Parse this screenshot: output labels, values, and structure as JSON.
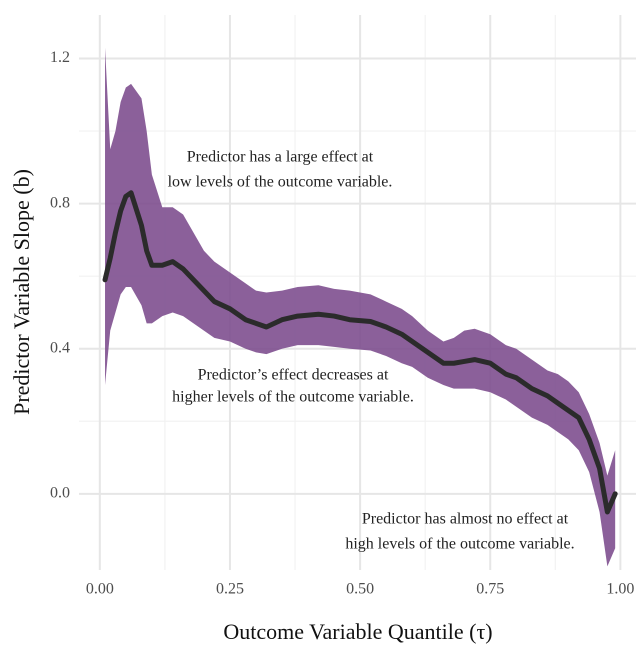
{
  "chart_data": {
    "type": "line",
    "xlabel": "Outcome Variable Quantile (τ)",
    "ylabel": "Predictor Variable Slope (b)",
    "x": [
      0.01,
      0.02,
      0.03,
      0.04,
      0.05,
      0.06,
      0.08,
      0.09,
      0.1,
      0.12,
      0.14,
      0.16,
      0.18,
      0.2,
      0.22,
      0.25,
      0.28,
      0.3,
      0.32,
      0.35,
      0.38,
      0.42,
      0.45,
      0.48,
      0.52,
      0.55,
      0.58,
      0.6,
      0.63,
      0.66,
      0.68,
      0.7,
      0.72,
      0.75,
      0.78,
      0.8,
      0.83,
      0.86,
      0.88,
      0.9,
      0.92,
      0.94,
      0.96,
      0.975,
      0.99
    ],
    "series": [
      {
        "color": "#2b2b2b",
        "band_color": "#7b4a8c",
        "values": [
          0.59,
          0.65,
          0.72,
          0.78,
          0.82,
          0.83,
          0.74,
          0.67,
          0.63,
          0.63,
          0.64,
          0.62,
          0.59,
          0.56,
          0.53,
          0.51,
          0.48,
          0.47,
          0.46,
          0.48,
          0.49,
          0.495,
          0.49,
          0.48,
          0.475,
          0.46,
          0.44,
          0.42,
          0.39,
          0.36,
          0.36,
          0.365,
          0.37,
          0.36,
          0.33,
          0.32,
          0.29,
          0.27,
          0.25,
          0.23,
          0.21,
          0.15,
          0.07,
          -0.05,
          0.0
        ],
        "upper": [
          1.23,
          0.95,
          1.0,
          1.08,
          1.12,
          1.13,
          1.09,
          1.0,
          0.88,
          0.79,
          0.79,
          0.77,
          0.72,
          0.67,
          0.64,
          0.61,
          0.58,
          0.56,
          0.555,
          0.56,
          0.57,
          0.575,
          0.565,
          0.56,
          0.55,
          0.53,
          0.51,
          0.49,
          0.45,
          0.42,
          0.43,
          0.45,
          0.455,
          0.44,
          0.41,
          0.4,
          0.37,
          0.34,
          0.33,
          0.31,
          0.28,
          0.22,
          0.14,
          0.05,
          0.12
        ],
        "lower": [
          0.3,
          0.45,
          0.5,
          0.55,
          0.57,
          0.57,
          0.52,
          0.47,
          0.47,
          0.49,
          0.5,
          0.49,
          0.47,
          0.45,
          0.43,
          0.42,
          0.4,
          0.39,
          0.385,
          0.4,
          0.41,
          0.41,
          0.405,
          0.4,
          0.395,
          0.38,
          0.36,
          0.35,
          0.32,
          0.3,
          0.29,
          0.29,
          0.29,
          0.28,
          0.26,
          0.24,
          0.21,
          0.19,
          0.17,
          0.15,
          0.12,
          0.06,
          -0.05,
          -0.2,
          -0.15
        ]
      }
    ],
    "xlim": [
      -0.04,
      1.03
    ],
    "ylim": [
      -0.21,
      1.32
    ],
    "xticks": [
      {
        "value": 0,
        "label": "0.00"
      },
      {
        "value": 0.25,
        "label": "0.25"
      },
      {
        "value": 0.5,
        "label": "0.50"
      },
      {
        "value": 0.75,
        "label": "0.75"
      },
      {
        "value": 1,
        "label": "1.00"
      }
    ],
    "yticks": [
      {
        "value": 0,
        "label": "0.0"
      },
      0.4,
      0.8,
      1.2
    ],
    "grid": true,
    "annotations": [
      {
        "lines": [
          "Predictor has a large effect at",
          "low levels of the outcome variable."
        ]
      },
      {
        "lines": [
          "Predictor’s effect decreases at",
          "higher levels of the outcome variable."
        ]
      },
      {
        "lines": [
          "Predictor has almost no effect at",
          "high levels of the outcome variable."
        ]
      }
    ]
  }
}
